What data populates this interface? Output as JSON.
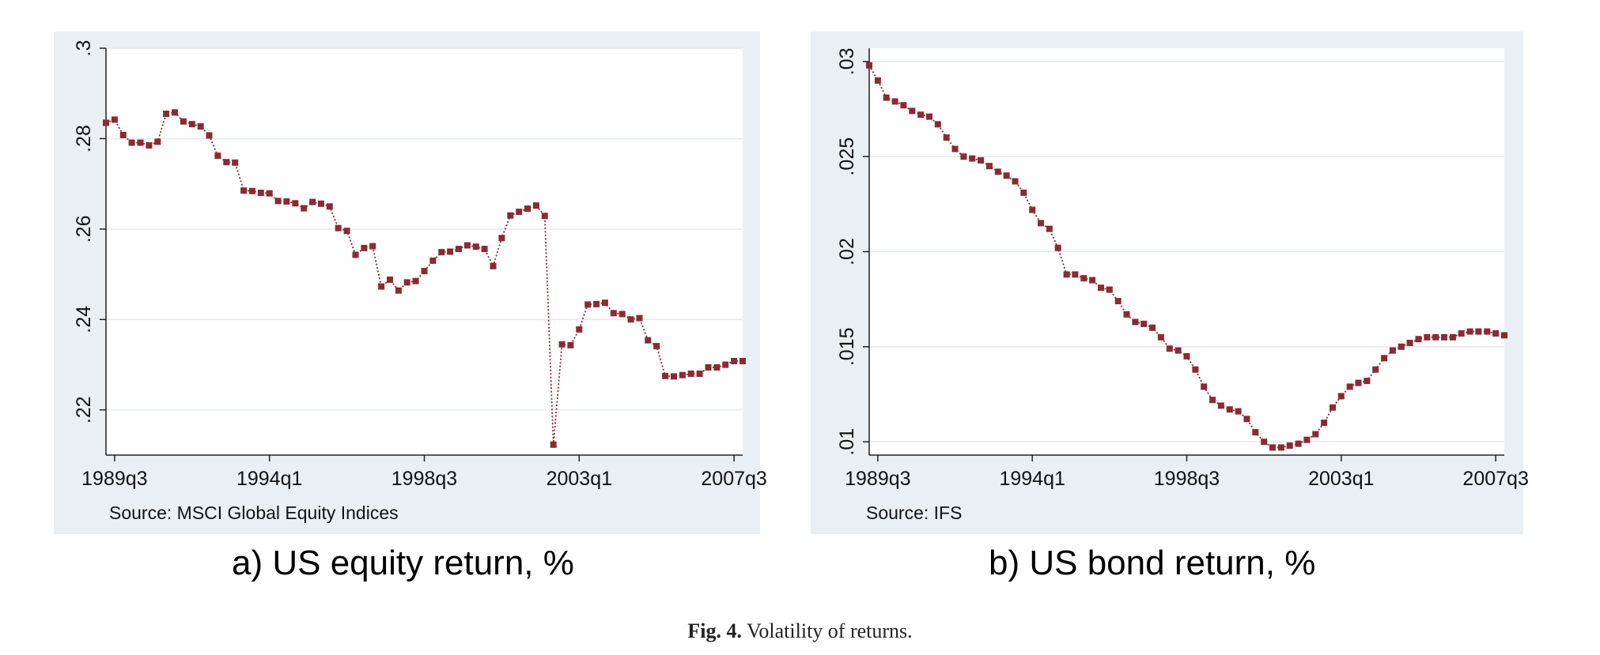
{
  "figure": {
    "label": "Fig. 4.",
    "caption": "Volatility of returns."
  },
  "chart_data": [
    {
      "type": "line",
      "panel_label": "a)",
      "title": "US equity return, %",
      "note": "Source: MSCI Global Equity Indices",
      "xlabel": "",
      "ylabel": "",
      "x_ticks": [
        "1989q3",
        "1994q1",
        "1998q3",
        "2003q1",
        "2007q3"
      ],
      "y_ticks": [
        ".22",
        ".24",
        ".26",
        ".28",
        ".3"
      ],
      "ylim": [
        0.21,
        0.3
      ],
      "xlim": [
        "1989q2",
        "2007q4"
      ],
      "grid": true,
      "legend": "none",
      "color": "#8b2a33",
      "x": [
        "1989q2",
        "1989q3",
        "1989q4",
        "1990q1",
        "1990q2",
        "1990q3",
        "1990q4",
        "1991q1",
        "1991q2",
        "1991q3",
        "1991q4",
        "1992q1",
        "1992q2",
        "1992q3",
        "1992q4",
        "1993q1",
        "1993q2",
        "1993q3",
        "1993q4",
        "1994q1",
        "1994q2",
        "1994q3",
        "1994q4",
        "1995q1",
        "1995q2",
        "1995q3",
        "1995q4",
        "1996q1",
        "1996q2",
        "1996q3",
        "1996q4",
        "1997q1",
        "1997q2",
        "1997q3",
        "1997q4",
        "1998q1",
        "1998q2",
        "1998q3",
        "1998q4",
        "1999q1",
        "1999q2",
        "1999q3",
        "1999q4",
        "2000q1",
        "2000q2",
        "2000q3",
        "2000q4",
        "2001q1",
        "2001q2",
        "2001q3",
        "2001q4",
        "2002q1",
        "2002q2",
        "2002q3",
        "2002q4",
        "2003q1",
        "2003q2",
        "2003q3",
        "2003q4",
        "2004q1",
        "2004q2",
        "2004q3",
        "2004q4",
        "2005q1",
        "2005q2",
        "2005q3",
        "2005q4",
        "2006q1",
        "2006q2",
        "2006q3",
        "2006q4",
        "2007q1",
        "2007q2",
        "2007q3",
        "2007q4"
      ],
      "values": [
        0.2835,
        0.2842,
        0.2808,
        0.2791,
        0.2791,
        0.2785,
        0.2793,
        0.2855,
        0.2858,
        0.2838,
        0.2832,
        0.2827,
        0.2807,
        0.2762,
        0.2748,
        0.2747,
        0.2685,
        0.2684,
        0.268,
        0.2679,
        0.2662,
        0.2661,
        0.2657,
        0.2646,
        0.266,
        0.2656,
        0.265,
        0.2602,
        0.2596,
        0.2543,
        0.2558,
        0.2562,
        0.2473,
        0.2488,
        0.2464,
        0.2482,
        0.2485,
        0.2507,
        0.253,
        0.2549,
        0.255,
        0.2556,
        0.2564,
        0.2561,
        0.2556,
        0.2518,
        0.258,
        0.263,
        0.2638,
        0.2645,
        0.2652,
        0.2629,
        0.2123,
        0.2345,
        0.2343,
        0.2378,
        0.2433,
        0.2434,
        0.2437,
        0.2414,
        0.2412,
        0.24,
        0.2403,
        0.2354,
        0.2341,
        0.2275,
        0.2274,
        0.2277,
        0.228,
        0.228,
        0.2294,
        0.2294,
        0.23,
        0.2308,
        0.2308
      ]
    },
    {
      "type": "line",
      "panel_label": "b)",
      "title": "US bond return, %",
      "note": "Source: IFS",
      "xlabel": "",
      "ylabel": "",
      "x_ticks": [
        "1989q3",
        "1994q1",
        "1998q3",
        "2003q1",
        "2007q3"
      ],
      "y_ticks": [
        ".01",
        ".015",
        ".02",
        ".025",
        ".03"
      ],
      "ylim": [
        0.0093,
        0.0307
      ],
      "xlim": [
        "1989q2",
        "2007q4"
      ],
      "grid": true,
      "legend": "none",
      "color": "#8b2a33",
      "x": [
        "1989q2",
        "1989q3",
        "1989q4",
        "1990q1",
        "1990q2",
        "1990q3",
        "1990q4",
        "1991q1",
        "1991q2",
        "1991q3",
        "1991q4",
        "1992q1",
        "1992q2",
        "1992q3",
        "1992q4",
        "1993q1",
        "1993q2",
        "1993q3",
        "1993q4",
        "1994q1",
        "1994q2",
        "1994q3",
        "1994q4",
        "1995q1",
        "1995q2",
        "1995q3",
        "1995q4",
        "1996q1",
        "1996q2",
        "1996q3",
        "1996q4",
        "1997q1",
        "1997q2",
        "1997q3",
        "1997q4",
        "1998q1",
        "1998q2",
        "1998q3",
        "1998q4",
        "1999q1",
        "1999q2",
        "1999q3",
        "1999q4",
        "2000q1",
        "2000q2",
        "2000q3",
        "2000q4",
        "2001q1",
        "2001q2",
        "2001q3",
        "2001q4",
        "2002q1",
        "2002q2",
        "2002q3",
        "2002q4",
        "2003q1",
        "2003q2",
        "2003q3",
        "2003q4",
        "2004q1",
        "2004q2",
        "2004q3",
        "2004q4",
        "2005q1",
        "2005q2",
        "2005q3",
        "2005q4",
        "2006q1",
        "2006q2",
        "2006q3",
        "2006q4",
        "2007q1",
        "2007q2",
        "2007q3",
        "2007q4"
      ],
      "values": [
        0.0298,
        0.029,
        0.0281,
        0.0279,
        0.0277,
        0.0274,
        0.0272,
        0.0271,
        0.0267,
        0.026,
        0.0254,
        0.025,
        0.0249,
        0.0248,
        0.0245,
        0.0242,
        0.024,
        0.0237,
        0.0231,
        0.0222,
        0.0215,
        0.0212,
        0.0202,
        0.0188,
        0.0188,
        0.0186,
        0.0185,
        0.0181,
        0.018,
        0.0174,
        0.0167,
        0.0163,
        0.0162,
        0.016,
        0.0155,
        0.0149,
        0.0148,
        0.0145,
        0.0138,
        0.0129,
        0.0122,
        0.0119,
        0.0117,
        0.0116,
        0.0112,
        0.0105,
        0.01,
        0.0097,
        0.0097,
        0.0098,
        0.0099,
        0.0101,
        0.0104,
        0.011,
        0.0118,
        0.0124,
        0.0129,
        0.0131,
        0.0132,
        0.0138,
        0.0144,
        0.0148,
        0.015,
        0.0152,
        0.0154,
        0.0155,
        0.0155,
        0.0155,
        0.0155,
        0.0157,
        0.0158,
        0.0158,
        0.0158,
        0.0157,
        0.0156
      ]
    }
  ]
}
